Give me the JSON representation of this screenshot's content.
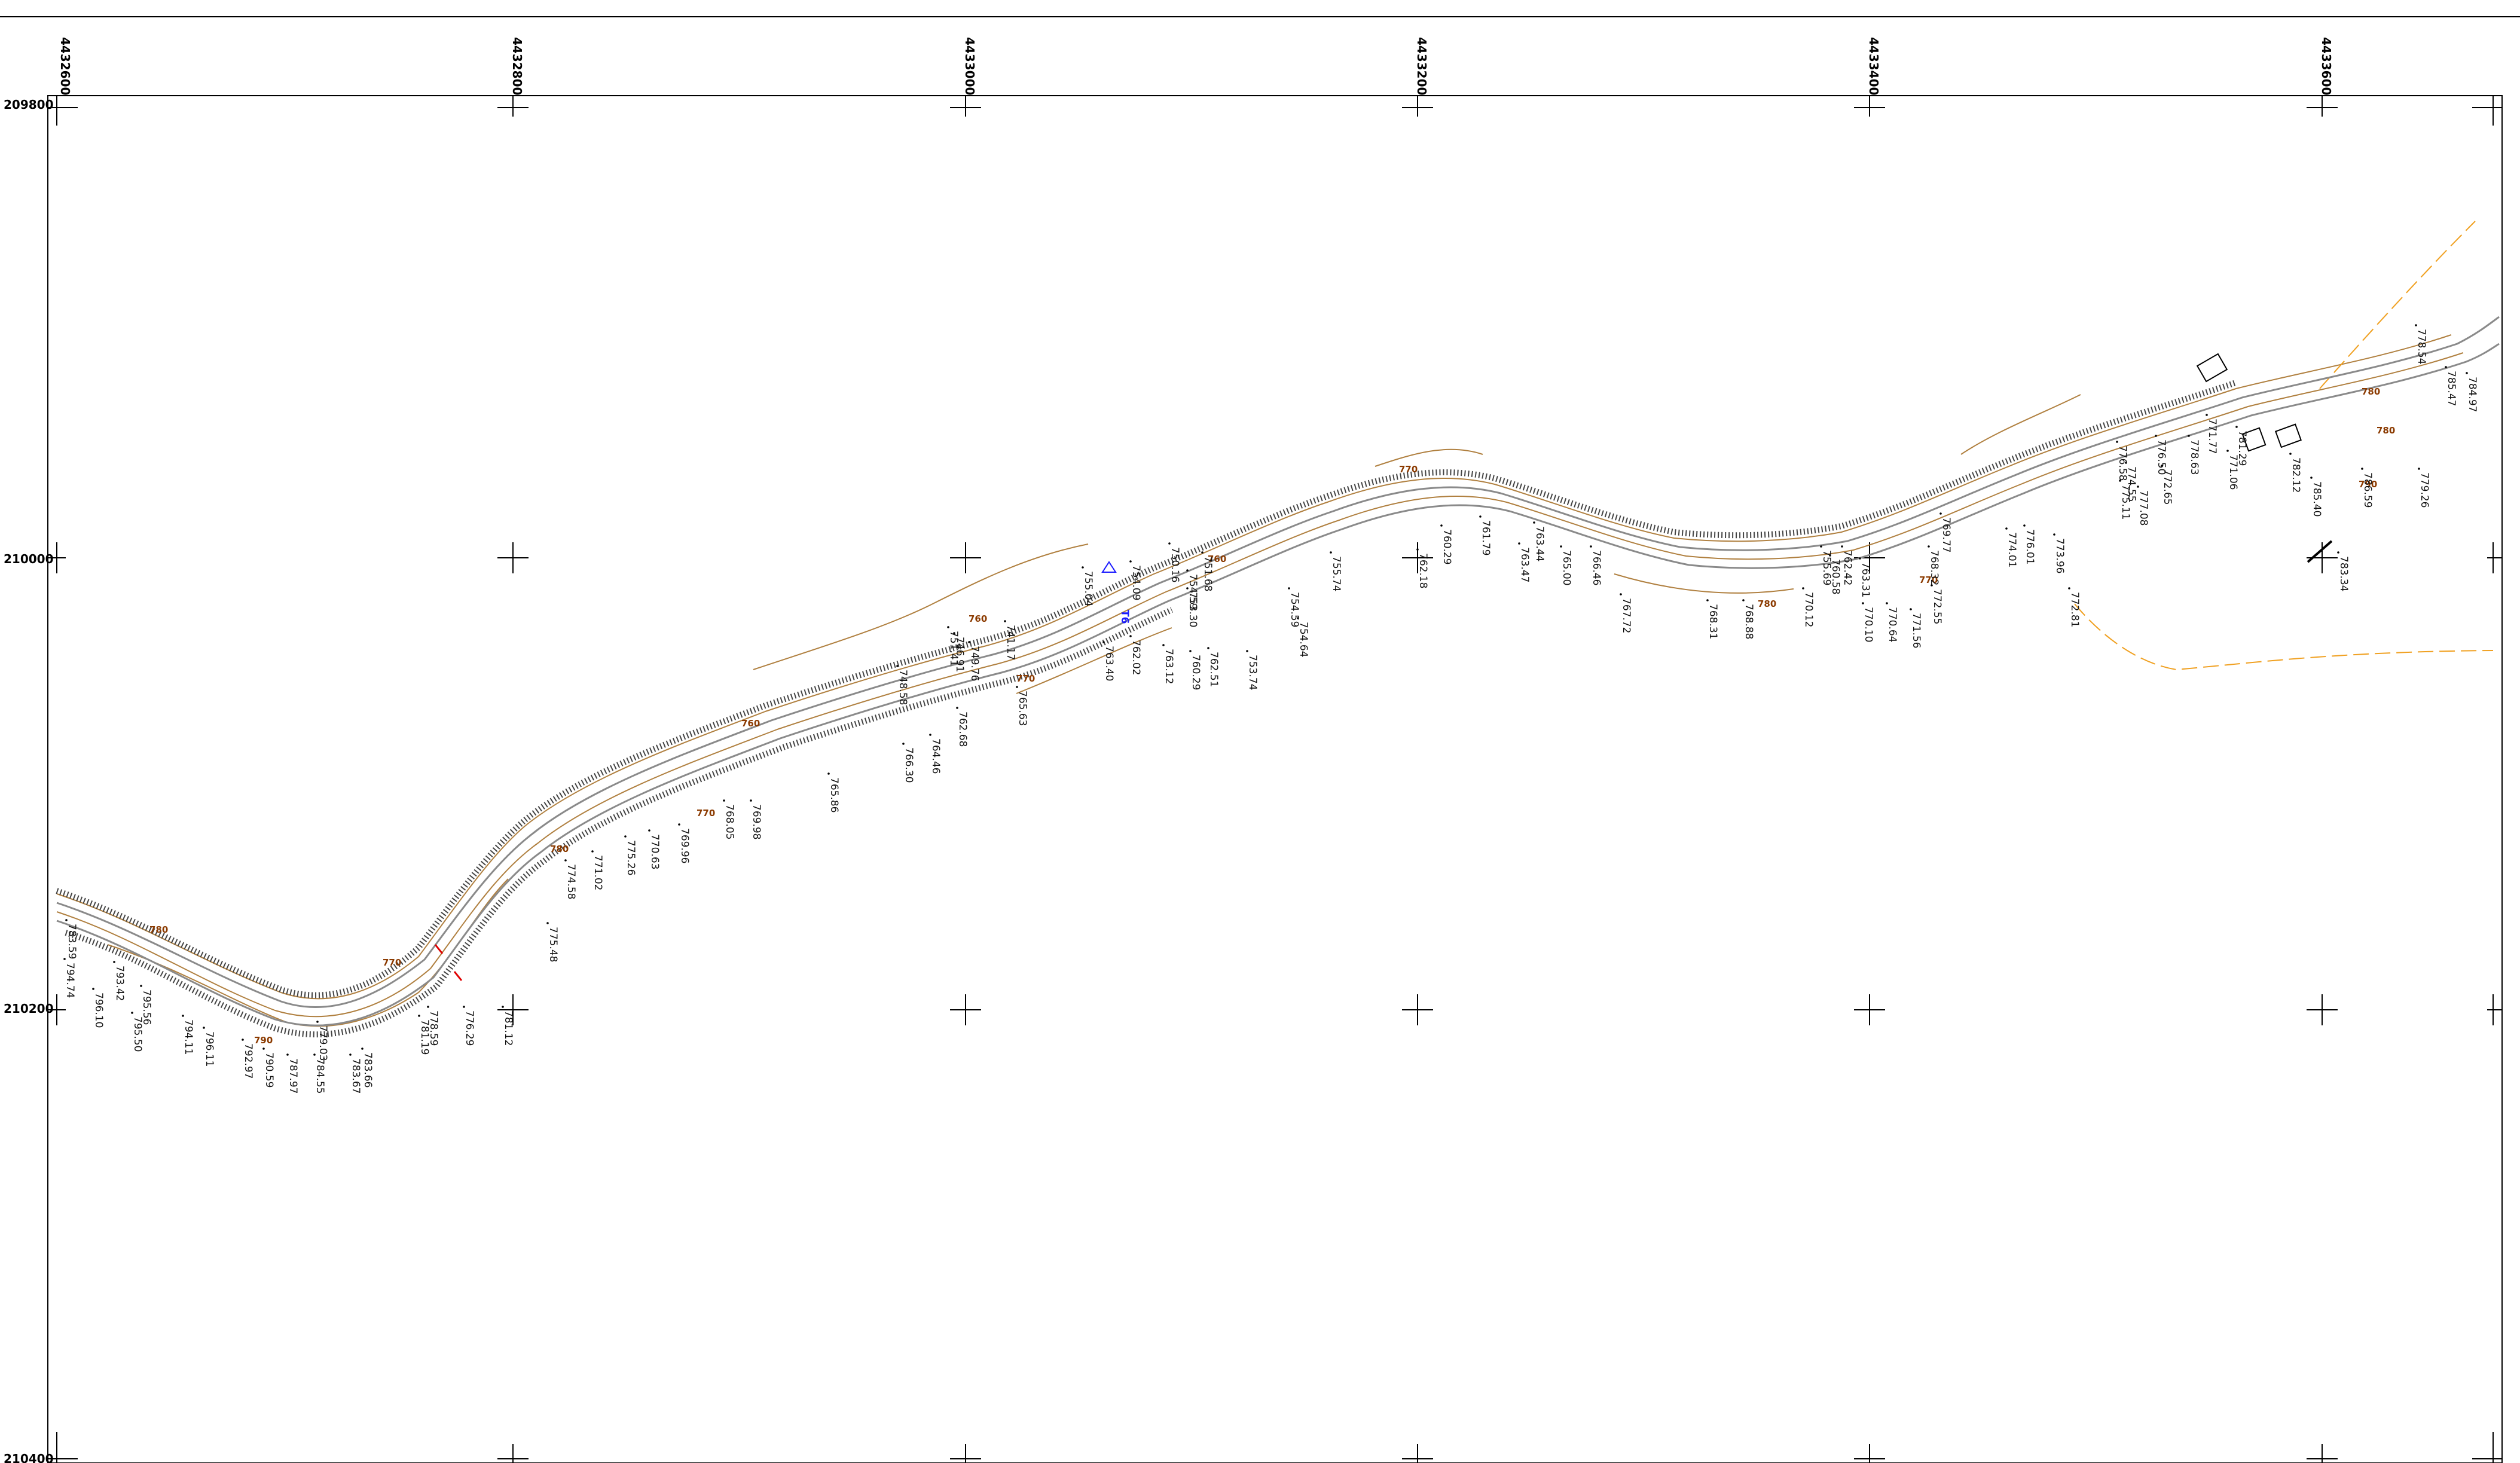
{
  "grid": {
    "x_labels": [
      "4432600",
      "4432800",
      "4433000",
      "4433200",
      "4433400",
      "4433600"
    ],
    "y_labels": [
      "209800",
      "210000",
      "210200",
      "210400"
    ]
  },
  "marker": {
    "label": "T6"
  },
  "contour_labels": [
    "780",
    "790",
    "770",
    "780",
    "760",
    "770",
    "760",
    "770",
    "760",
    "770",
    "780",
    "770",
    "780",
    "790",
    "780"
  ],
  "elevations": [
    "783.59",
    "794.74",
    "796.10",
    "793.42",
    "795.56",
    "795.50",
    "794.11",
    "796.11",
    "792.97",
    "790.59",
    "787.97",
    "784.55",
    "779.03",
    "783.67",
    "783.66",
    "778.59",
    "781.19",
    "776.29",
    "781.12",
    "775.48",
    "774.58",
    "771.02",
    "775.26",
    "770.63",
    "769.96",
    "769.98",
    "768.05",
    "765.86",
    "766.30",
    "764.46",
    "762.68",
    "765.63",
    "763.40",
    "762.02",
    "763.12",
    "762.51",
    "760.29",
    "753.74",
    "754.64",
    "754.59",
    "755.74",
    "762.18",
    "760.29",
    "761.79",
    "763.47",
    "763.44",
    "765.00",
    "766.46",
    "767.72",
    "768.31",
    "768.88",
    "770.12",
    "770.10",
    "770.64",
    "771.56",
    "772.55",
    "772.81",
    "773.96",
    "775.11",
    "774.55",
    "776.50",
    "778.63",
    "781.29",
    "782.12",
    "785.40",
    "786.59",
    "779.26",
    "783.34",
    "778.54",
    "785.47",
    "784.97",
    "771.77",
    "771.06",
    "772.65",
    "777.08",
    "776.58",
    "776.01",
    "774.01",
    "769.77",
    "768.32",
    "763.31",
    "762.42",
    "760.58",
    "755.69",
    "755.04",
    "754.09",
    "754.59",
    "753.30",
    "751.68",
    "750.16",
    "749.76",
    "748.58",
    "741.17",
    "746.91",
    "751.41"
  ]
}
